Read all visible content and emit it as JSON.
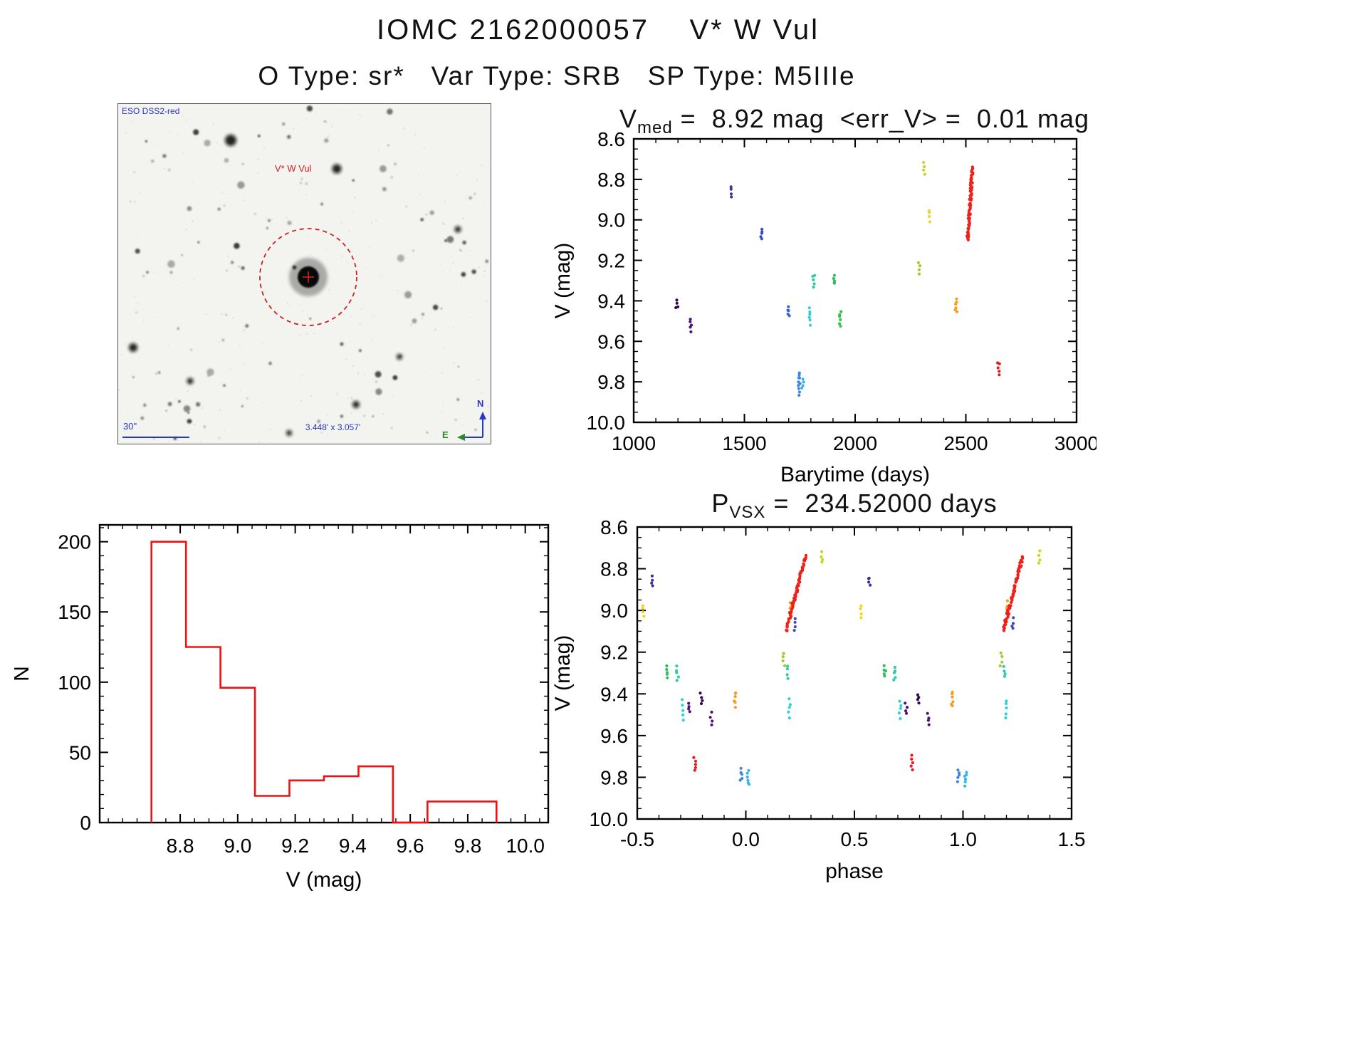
{
  "header": {
    "title": "IOMC 2162000057    V* W Vul",
    "subtitle": "O Type: sr*   Var Type: SRB   SP Type: M5IIIe"
  },
  "finder": {
    "survey": "ESO DSS2-red",
    "target": "V* W Vul",
    "scalebar": "30\"",
    "fov": "3.448' x 3.057'",
    "north": "N",
    "east": "E"
  },
  "chart_data": [
    {
      "id": "lightcurve",
      "type": "scatter",
      "title": {
        "base": "V",
        "sub": "med",
        "rest": " =  8.92 mag  <err_V> =  0.01 mag"
      },
      "xlabel": "Barytime (days)",
      "ylabel": "V (mag)",
      "xlim": [
        1000,
        3000
      ],
      "ylim": [
        8.6,
        10.0
      ],
      "y_down": true,
      "xticks": [
        1000,
        1500,
        2000,
        2500,
        3000
      ],
      "xtick_labels": [
        "1000",
        "1500",
        "2000",
        "2500",
        "3000"
      ],
      "yticks": [
        8.6,
        8.8,
        9.0,
        9.2,
        9.4,
        9.6,
        9.8,
        10.0
      ],
      "ytick_labels": [
        "8.6",
        "8.8",
        "9.0",
        "9.2",
        "9.4",
        "9.6",
        "9.8",
        "10.0"
      ],
      "xminor": 100,
      "yminor": 0.05,
      "clusters": [
        {
          "x": 1195,
          "y1": 9.4,
          "y2": 9.44,
          "n": 4,
          "c": "#31094e"
        },
        {
          "x": 1258,
          "y1": 9.49,
          "y2": 9.55,
          "n": 5,
          "c": "#4a1478"
        },
        {
          "x": 1443,
          "y1": 8.84,
          "y2": 8.88,
          "n": 4,
          "c": "#403099"
        },
        {
          "x": 1578,
          "y1": 9.04,
          "y2": 9.09,
          "n": 5,
          "c": "#3b4cc0"
        },
        {
          "x": 1700,
          "y1": 9.43,
          "y2": 9.48,
          "n": 5,
          "c": "#3a62d9"
        },
        {
          "x": 1747,
          "y1": 9.75,
          "y2": 9.86,
          "n": 10,
          "c": "#3d86e0"
        },
        {
          "x": 1763,
          "y1": 9.78,
          "y2": 9.83,
          "n": 4,
          "c": "#37b5e6"
        },
        {
          "x": 1793,
          "y1": 9.43,
          "y2": 9.52,
          "n": 6,
          "c": "#2fd0dc"
        },
        {
          "x": 1813,
          "y1": 9.27,
          "y2": 9.33,
          "n": 5,
          "c": "#2ecba4"
        },
        {
          "x": 1905,
          "y1": 9.27,
          "y2": 9.32,
          "n": 5,
          "c": "#2dbf58"
        },
        {
          "x": 1933,
          "y1": 9.45,
          "y2": 9.52,
          "n": 6,
          "c": "#34c24c"
        },
        {
          "x": 2288,
          "y1": 9.21,
          "y2": 9.26,
          "n": 4,
          "c": "#a1cc2a"
        },
        {
          "x": 2312,
          "y1": 8.72,
          "y2": 8.77,
          "n": 4,
          "c": "#c6d626"
        },
        {
          "x": 2338,
          "y1": 8.95,
          "y2": 9.01,
          "n": 4,
          "c": "#ecd822"
        },
        {
          "x": 2455,
          "y1": 9.39,
          "y2": 9.46,
          "n": 6,
          "c": "#f59d1f"
        },
        {
          "x": 2508,
          "y1": 8.74,
          "y2": 9.1,
          "n": 70,
          "c": "#ee2019",
          "xw": 22
        },
        {
          "x": 2648,
          "y1": 9.7,
          "y2": 9.77,
          "n": 5,
          "c": "#e8191c"
        }
      ]
    },
    {
      "id": "histogram",
      "type": "bar",
      "xlabel": "V (mag)",
      "ylabel": "N",
      "xlim": [
        8.52,
        10.08
      ],
      "ylim": [
        0,
        212
      ],
      "xticks": [
        8.8,
        9.0,
        9.2,
        9.4,
        9.6,
        9.8,
        10.0
      ],
      "xtick_labels": [
        "8.8",
        "9.0",
        "9.2",
        "9.4",
        "9.6",
        "9.8",
        "10.0"
      ],
      "yticks": [
        0,
        50,
        100,
        150,
        200
      ],
      "ytick_labels": [
        "0",
        "50",
        "100",
        "150",
        "200"
      ],
      "xminor": 0.05,
      "yminor": 10,
      "bin_edges": [
        8.7,
        8.82,
        8.94,
        9.06,
        9.18,
        9.3,
        9.42,
        9.54,
        9.66,
        9.78,
        9.9
      ],
      "counts": [
        200,
        125,
        96,
        19,
        30,
        33,
        40,
        0,
        15,
        15
      ],
      "color": "#f50f0f"
    },
    {
      "id": "phase",
      "type": "scatter",
      "title": {
        "base": "P",
        "sub": "VSX",
        "rest": " =  234.52000 days"
      },
      "xlabel": "phase",
      "ylabel": "V (mag)",
      "xlim": [
        -0.5,
        1.5
      ],
      "ylim": [
        8.6,
        10.0
      ],
      "y_down": true,
      "fold": true,
      "xticks": [
        -0.5,
        0.0,
        0.5,
        1.0,
        1.5
      ],
      "xtick_labels": [
        "-0.5",
        "0.0",
        "0.5",
        "1.0",
        "1.5"
      ],
      "yticks": [
        8.6,
        8.8,
        9.0,
        9.2,
        9.4,
        9.6,
        9.8,
        10.0
      ],
      "ytick_labels": [
        "8.6",
        "8.8",
        "9.0",
        "9.2",
        "9.4",
        "9.6",
        "9.8",
        "10.0"
      ],
      "xminor": 0.1,
      "yminor": 0.05,
      "clusters": [
        {
          "x": -0.47,
          "y1": 8.98,
          "y2": 9.03,
          "n": 4,
          "c": "#ecd822"
        },
        {
          "x": -0.43,
          "y1": 8.84,
          "y2": 8.88,
          "n": 4,
          "c": "#403099"
        },
        {
          "x": -0.36,
          "y1": 9.27,
          "y2": 9.32,
          "n": 5,
          "c": "#2dbf58"
        },
        {
          "x": -0.315,
          "y1": 9.27,
          "y2": 9.33,
          "n": 5,
          "c": "#2ecba4"
        },
        {
          "x": -0.29,
          "y1": 9.43,
          "y2": 9.52,
          "n": 5,
          "c": "#2fd0dc"
        },
        {
          "x": -0.262,
          "y1": 9.45,
          "y2": 9.49,
          "n": 4,
          "c": "#4a1478"
        },
        {
          "x": -0.235,
          "y1": 9.7,
          "y2": 9.77,
          "n": 5,
          "c": "#e8191c"
        },
        {
          "x": -0.205,
          "y1": 9.4,
          "y2": 9.44,
          "n": 4,
          "c": "#31094e"
        },
        {
          "x": -0.16,
          "y1": 9.49,
          "y2": 9.55,
          "n": 4,
          "c": "#4a1478"
        },
        {
          "x": -0.05,
          "y1": 9.39,
          "y2": 9.46,
          "n": 6,
          "c": "#f59d1f"
        },
        {
          "x": -0.022,
          "y1": 9.76,
          "y2": 9.82,
          "n": 5,
          "c": "#3d86e0"
        },
        {
          "x": 0.012,
          "y1": 9.77,
          "y2": 9.84,
          "n": 6,
          "c": "#37b5e6"
        },
        {
          "x": 0.175,
          "y1": 9.21,
          "y2": 9.26,
          "n": 4,
          "c": "#a1cc2a"
        },
        {
          "x": 0.19,
          "y1": 9.27,
          "y2": 9.32,
          "n": 4,
          "c": "#2ecba4"
        },
        {
          "x": 0.2,
          "y1": 9.43,
          "y2": 9.51,
          "n": 5,
          "c": "#2fd0dc"
        },
        {
          "x": 0.205,
          "y1": 8.96,
          "y2": 9.03,
          "n": 5,
          "c": "#f59d1f"
        },
        {
          "x": 0.228,
          "y1": 9.04,
          "y2": 9.09,
          "n": 4,
          "c": "#3b4cc0"
        },
        {
          "x": 0.185,
          "y1": 8.74,
          "y2": 9.1,
          "n": 70,
          "c": "#ee2019",
          "xw": 0.09
        },
        {
          "x": 0.35,
          "y1": 8.72,
          "y2": 8.77,
          "n": 4,
          "c": "#c6d626"
        }
      ]
    }
  ]
}
